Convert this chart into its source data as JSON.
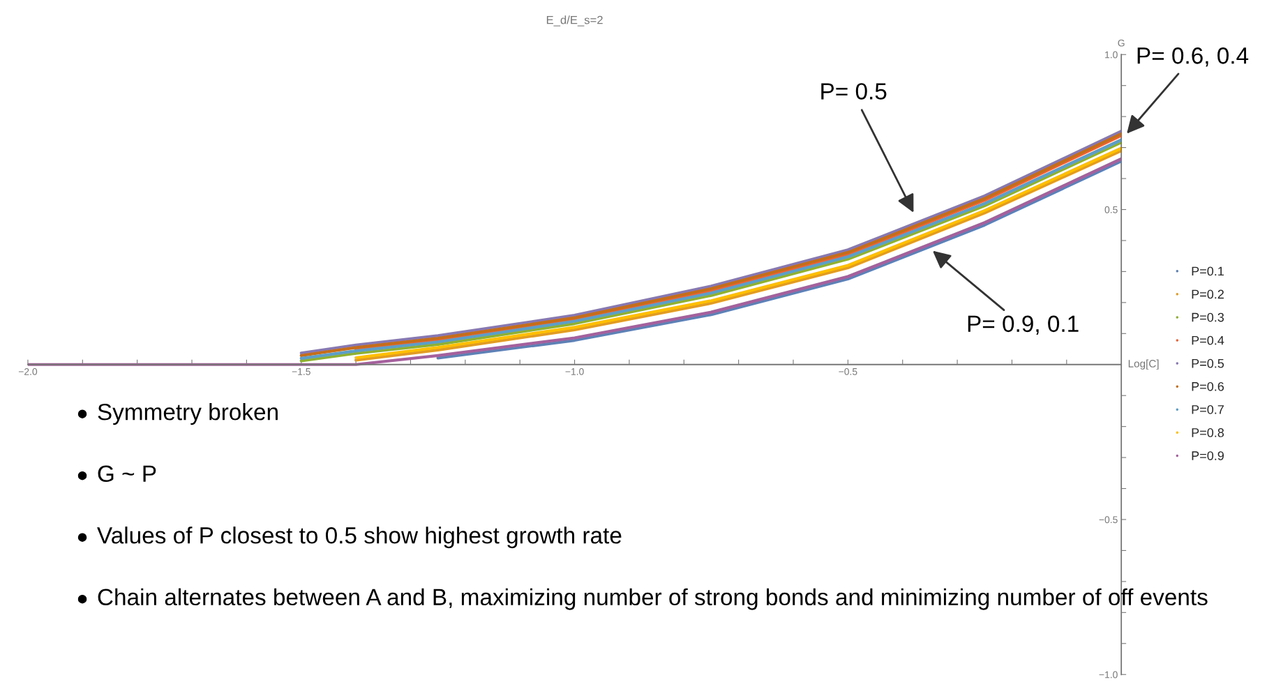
{
  "chart_data": {
    "type": "line",
    "title": "E_d/E_s=2",
    "xlabel": "Log[C]",
    "ylabel": "G",
    "x": [
      -2,
      -1.75,
      -1.6,
      -1.5,
      -1.4,
      -1.25,
      -1,
      -0.75,
      -0.5,
      -0.25,
      0
    ],
    "series": [
      {
        "name": "P=0.1",
        "color": "#5e81b5",
        "values": [
          null,
          null,
          null,
          null,
          null,
          0.021,
          0.078,
          0.161,
          0.276,
          0.45,
          0.656
        ]
      },
      {
        "name": "P=0.2",
        "color": "#e19c24",
        "values": [
          null,
          null,
          null,
          null,
          0.014,
          0.047,
          0.112,
          0.198,
          0.312,
          0.489,
          0.69
        ]
      },
      {
        "name": "P=0.3",
        "color": "#8fb032",
        "values": [
          null,
          null,
          null,
          0.012,
          0.036,
          0.065,
          0.132,
          0.223,
          0.34,
          0.512,
          0.717
        ]
      },
      {
        "name": "P=0.4",
        "color": "#eb6235",
        "values": [
          null,
          null,
          null,
          null,
          0.049,
          0.079,
          0.145,
          0.239,
          0.356,
          0.53,
          0.739
        ]
      },
      {
        "name": "P=0.5",
        "color": "#8778b3",
        "values": [
          null,
          null,
          null,
          0.037,
          0.063,
          0.093,
          0.159,
          0.253,
          0.37,
          0.544,
          0.753
        ]
      },
      {
        "name": "P=0.6",
        "color": "#c56e1a",
        "values": [
          null,
          null,
          null,
          0.029,
          0.055,
          0.085,
          0.151,
          0.245,
          0.362,
          0.536,
          0.745
        ]
      },
      {
        "name": "P=0.7",
        "color": "#5d9ec7",
        "values": [
          null,
          null,
          null,
          0.02,
          0.044,
          0.073,
          0.14,
          0.231,
          0.348,
          0.52,
          0.725
        ]
      },
      {
        "name": "P=0.8",
        "color": "#ffbf00",
        "values": [
          null,
          null,
          null,
          null,
          0.022,
          0.055,
          0.12,
          0.206,
          0.32,
          0.497,
          0.698
        ]
      },
      {
        "name": "P=0.9",
        "color": "#a5609d",
        "values": [
          0,
          0,
          0,
          0,
          0,
          0.029,
          0.086,
          0.169,
          0.284,
          0.458,
          0.664
        ]
      }
    ],
    "xlim": [
      -2,
      0
    ],
    "ylim": [
      -1,
      1
    ],
    "xticks": [
      {
        "value": -2,
        "label": "−2.0"
      },
      {
        "value": -1.9,
        "label": null
      },
      {
        "value": -1.8,
        "label": null
      },
      {
        "value": -1.7,
        "label": null
      },
      {
        "value": -1.6,
        "label": null
      },
      {
        "value": -1.5,
        "label": "−1.5"
      },
      {
        "value": -1.4,
        "label": null
      },
      {
        "value": -1.3,
        "label": null
      },
      {
        "value": -1.2,
        "label": null
      },
      {
        "value": -1.1,
        "label": null
      },
      {
        "value": -1,
        "label": "−1.0"
      },
      {
        "value": -0.9,
        "label": null
      },
      {
        "value": -0.8,
        "label": null
      },
      {
        "value": -0.7,
        "label": null
      },
      {
        "value": -0.6,
        "label": null
      },
      {
        "value": -0.5,
        "label": "−0.5"
      },
      {
        "value": -0.4,
        "label": null
      },
      {
        "value": -0.3,
        "label": null
      },
      {
        "value": -0.2,
        "label": null
      },
      {
        "value": -0.1,
        "label": null
      }
    ],
    "yticks": [
      {
        "value": -1,
        "label": "−1.0"
      },
      {
        "value": -0.9,
        "label": null
      },
      {
        "value": -0.8,
        "label": null
      },
      {
        "value": -0.7,
        "label": null
      },
      {
        "value": -0.6,
        "label": null
      },
      {
        "value": -0.5,
        "label": "−0.5"
      },
      {
        "value": -0.4,
        "label": null
      },
      {
        "value": -0.3,
        "label": null
      },
      {
        "value": -0.2,
        "label": null
      },
      {
        "value": -0.1,
        "label": null
      },
      {
        "value": 0.1,
        "label": null
      },
      {
        "value": 0.2,
        "label": null
      },
      {
        "value": 0.3,
        "label": null
      },
      {
        "value": 0.4,
        "label": null
      },
      {
        "value": 0.5,
        "label": "0.5"
      },
      {
        "value": 0.6,
        "label": null
      },
      {
        "value": 0.7,
        "label": null
      },
      {
        "value": 0.8,
        "label": null
      },
      {
        "value": 0.9,
        "label": null
      },
      {
        "value": 1,
        "label": "1.0"
      }
    ],
    "legend": "right",
    "annotations": [
      "P= 0.5",
      "P= 0.9, 0.1",
      "P= 0.6, 0.4",
      "Symmetry broken",
      "G ~ P",
      "Values of P closest to 0.5 show highest growth rate",
      "Chain alternates between A and B, maximizing number of strong bonds and minimizing number of off events"
    ]
  }
}
